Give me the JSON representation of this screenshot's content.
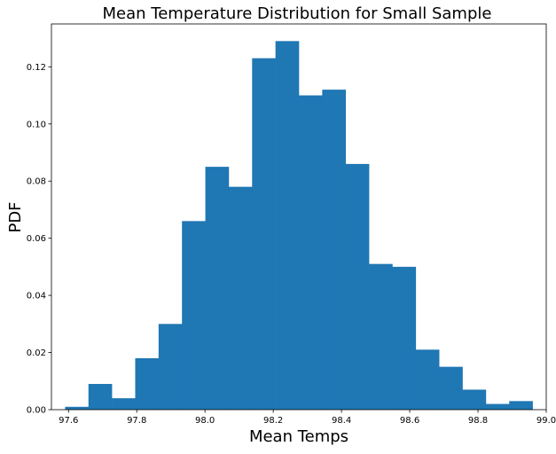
{
  "chart_data": {
    "type": "bar",
    "title": "Mean Temperature Distribution for Small Sample",
    "xlabel": "Mean Temps",
    "ylabel": "PDF",
    "xlim": [
      97.55,
      99.0
    ],
    "ylim": [
      0,
      0.135
    ],
    "xticks": [
      97.6,
      97.8,
      98.0,
      98.2,
      98.4,
      98.6,
      98.8,
      99.0
    ],
    "xtick_labels": [
      "97.6",
      "97.8",
      "98.0",
      "98.2",
      "98.4",
      "98.6",
      "98.8",
      "99.0"
    ],
    "yticks": [
      0,
      0.02,
      0.04,
      0.06,
      0.08,
      0.1,
      0.12
    ],
    "ytick_labels": [
      "0.00",
      "0.02",
      "0.04",
      "0.06",
      "0.08",
      "0.10",
      "0.12"
    ],
    "bin_edges": [
      97.59,
      97.6585,
      97.727,
      97.7955,
      97.864,
      97.9325,
      98.001,
      98.0695,
      98.138,
      98.2065,
      98.275,
      98.3435,
      98.412,
      98.4805,
      98.549,
      98.6175,
      98.686,
      98.7545,
      98.823,
      98.8915,
      98.96
    ],
    "values": [
      0.001,
      0.009,
      0.004,
      0.018,
      0.03,
      0.066,
      0.085,
      0.078,
      0.123,
      0.129,
      0.11,
      0.112,
      0.086,
      0.051,
      0.05,
      0.021,
      0.015,
      0.007,
      0.002,
      0.003
    ],
    "bar_color": "#1f77b4",
    "grid": false,
    "legend": "none"
  }
}
